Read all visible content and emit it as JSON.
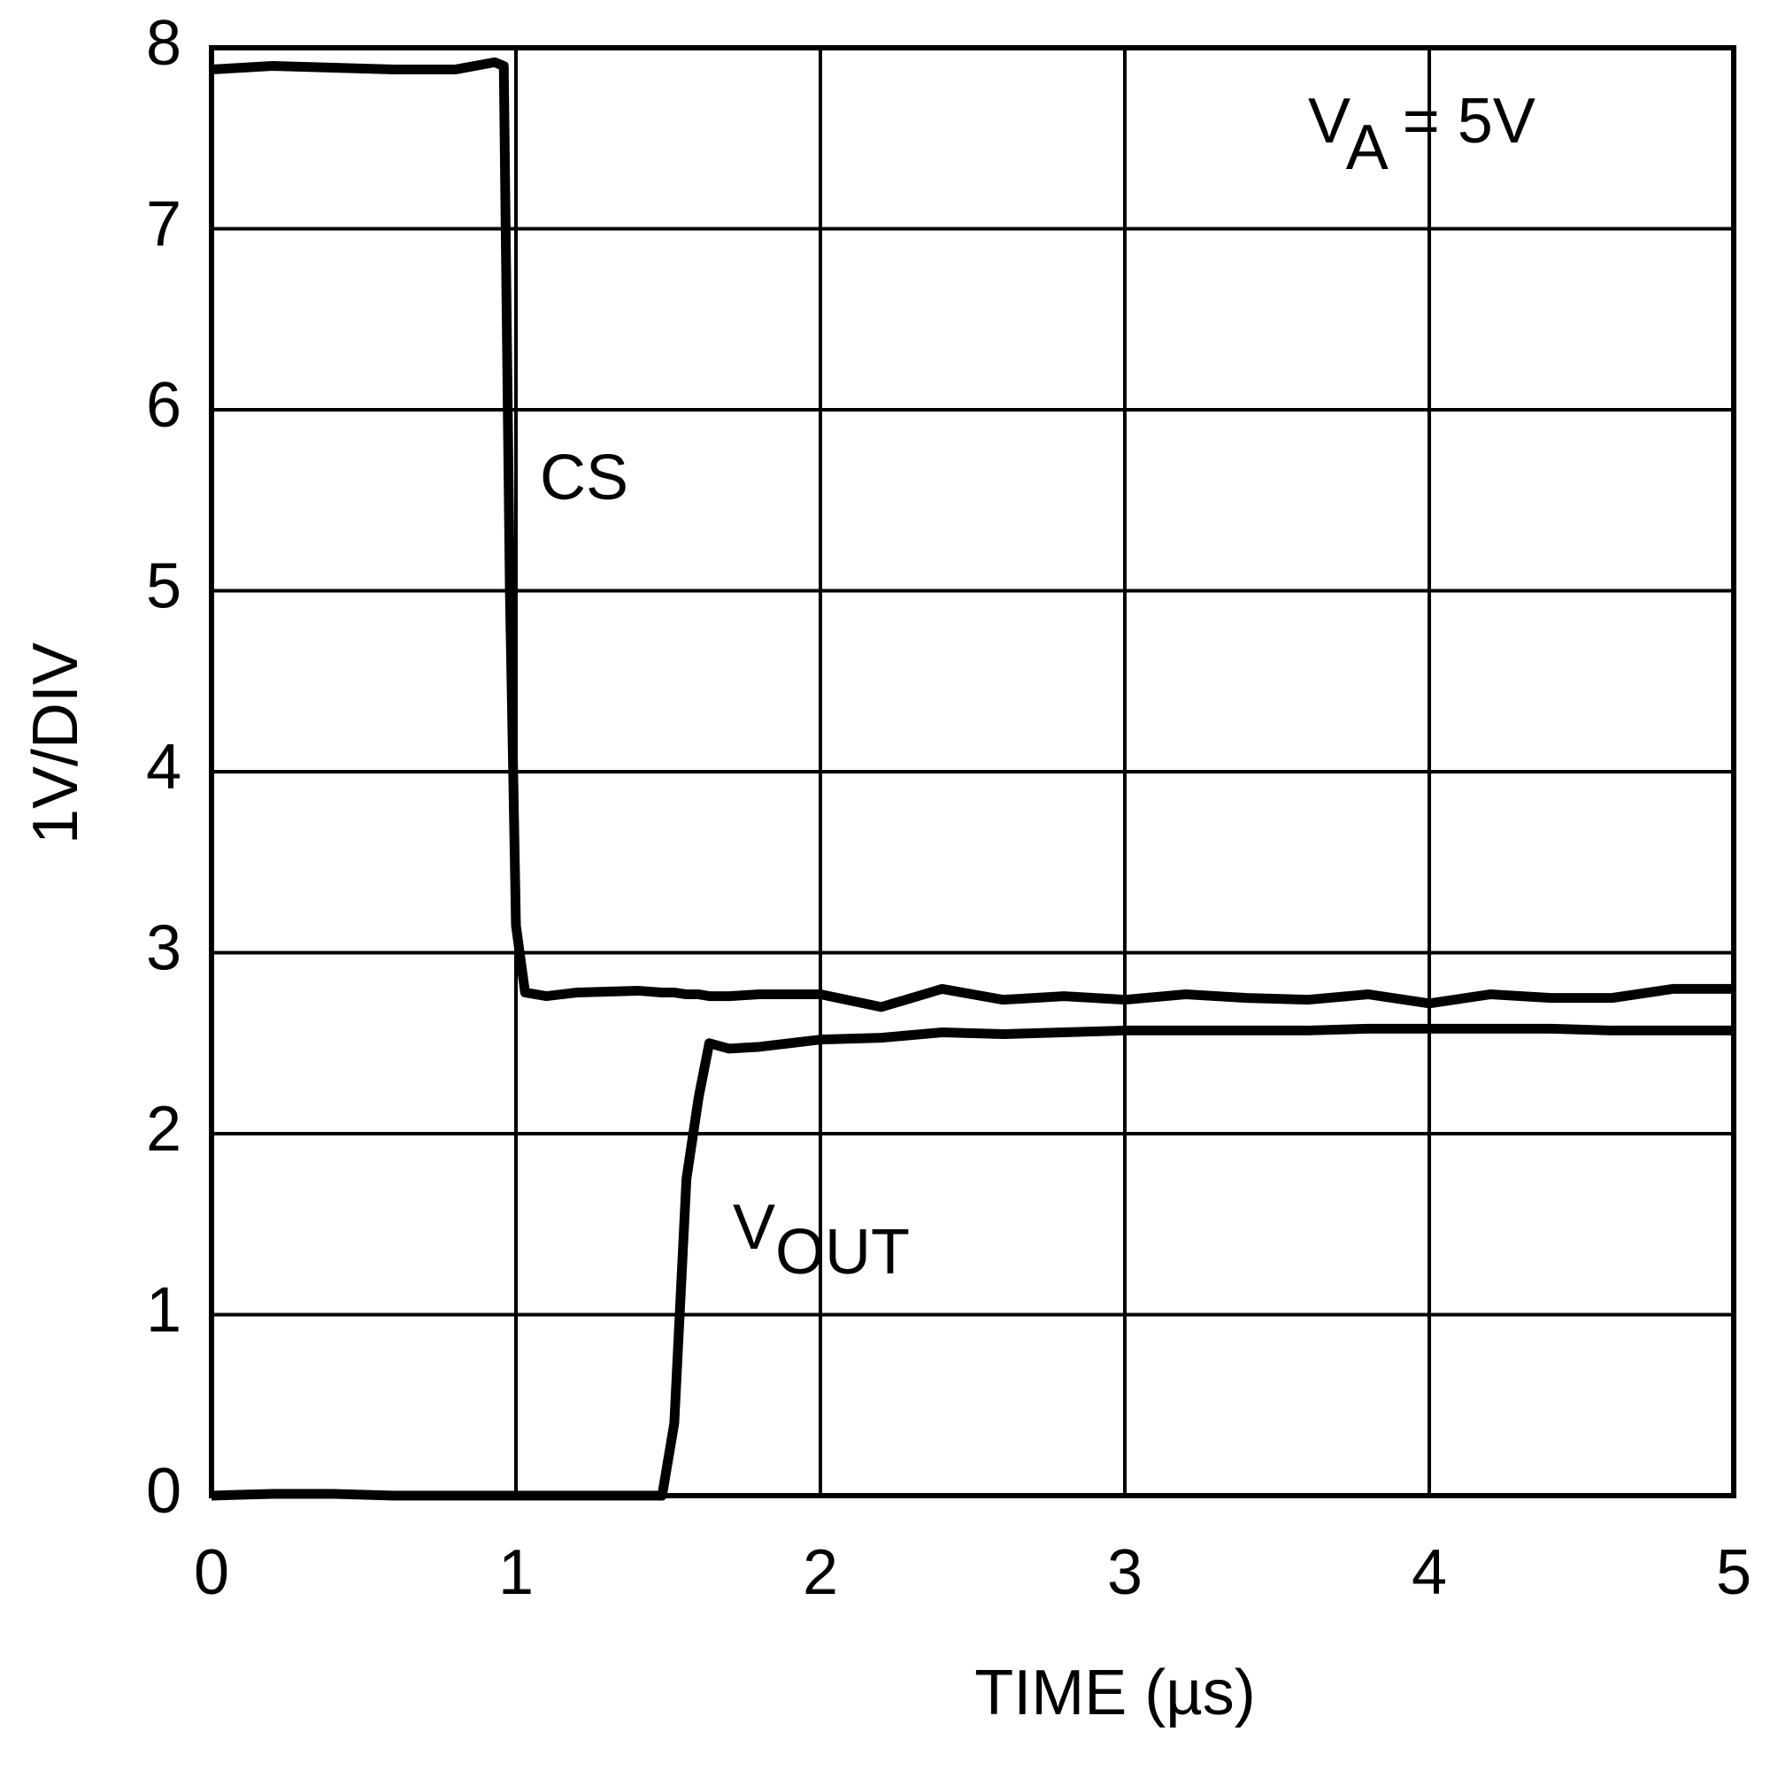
{
  "chart_data": {
    "type": "line",
    "xlabel": "TIME (µs)",
    "ylabel": "1V/DIV",
    "annotation": {
      "text": "V",
      "sub": "A",
      "rest": " = 5V"
    },
    "x": [
      0,
      0.2,
      0.4,
      0.6,
      0.8,
      0.93,
      0.96,
      0.98,
      1.0,
      1.03,
      1.1,
      1.2,
      1.4,
      1.48,
      1.52,
      1.56,
      1.6,
      1.635,
      1.7,
      1.8,
      2.0,
      2.2,
      2.4,
      2.6,
      2.8,
      3.0,
      3.2,
      3.4,
      3.6,
      3.8,
      4.0,
      4.2,
      4.4,
      4.6,
      4.8,
      5.0
    ],
    "series": [
      {
        "name": "CS",
        "color": "#000000",
        "values": [
          7.88,
          7.9,
          7.89,
          7.88,
          7.88,
          7.92,
          7.9,
          5.0,
          3.15,
          2.78,
          2.76,
          2.78,
          2.79,
          2.78,
          2.78,
          2.77,
          2.77,
          2.76,
          2.76,
          2.77,
          2.77,
          2.7,
          2.8,
          2.74,
          2.76,
          2.74,
          2.77,
          2.75,
          2.74,
          2.77,
          2.72,
          2.77,
          2.75,
          2.75,
          2.8,
          2.8
        ]
      },
      {
        "name": "V",
        "name_sub": "OUT",
        "color": "#000000",
        "values": [
          0,
          0.01,
          0.01,
          0,
          0,
          0,
          0,
          0,
          0,
          0,
          0,
          0,
          0,
          0,
          0.4,
          1.75,
          2.2,
          2.5,
          2.47,
          2.48,
          2.52,
          2.53,
          2.56,
          2.55,
          2.56,
          2.57,
          2.57,
          2.57,
          2.57,
          2.58,
          2.58,
          2.58,
          2.58,
          2.57,
          2.57,
          2.57
        ]
      }
    ],
    "xlim": [
      0,
      5
    ],
    "xticks": [
      0,
      1,
      2,
      3,
      4,
      5
    ],
    "ylim": [
      0,
      8
    ],
    "yticks": [
      0,
      1,
      2,
      3,
      4,
      5,
      6,
      7,
      8
    ],
    "grid": true
  }
}
